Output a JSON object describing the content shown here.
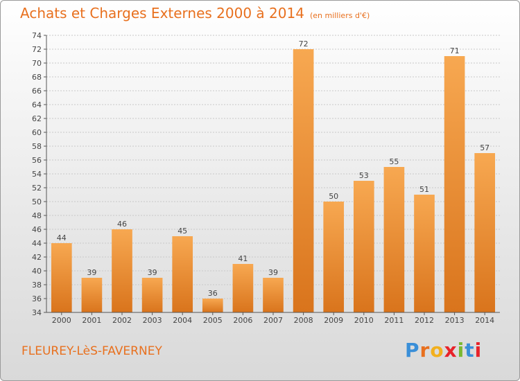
{
  "header": {
    "title": "Achats et Charges Externes 2000 à 2014",
    "unit": "(en milliers d'€)"
  },
  "footer": {
    "commune": "FLEUREY-LèS-FAVERNEY",
    "brand": "Proxiti",
    "brand_colors": [
      "#3a8fd8",
      "#e8701e",
      "#f2b01e",
      "#e8232a",
      "#7ab831",
      "#3a8fd8",
      "#e8232a"
    ]
  },
  "chart_data": {
    "type": "bar",
    "categories": [
      "2000",
      "2001",
      "2002",
      "2003",
      "2004",
      "2005",
      "2006",
      "2007",
      "2008",
      "2009",
      "2010",
      "2011",
      "2012",
      "2013",
      "2014"
    ],
    "values": [
      44,
      39,
      46,
      39,
      45,
      36,
      41,
      39,
      72,
      50,
      53,
      55,
      51,
      71,
      57
    ],
    "ylim": [
      34,
      74
    ],
    "yticks": [
      34,
      36,
      38,
      40,
      42,
      44,
      46,
      48,
      50,
      52,
      54,
      56,
      58,
      60,
      62,
      64,
      66,
      68,
      70,
      72,
      74
    ],
    "grid": true,
    "bar_color_top": "#f7a851",
    "bar_color_bottom": "#d9741c",
    "axis_color": "#555555",
    "grid_color": "#c8c8c8"
  }
}
